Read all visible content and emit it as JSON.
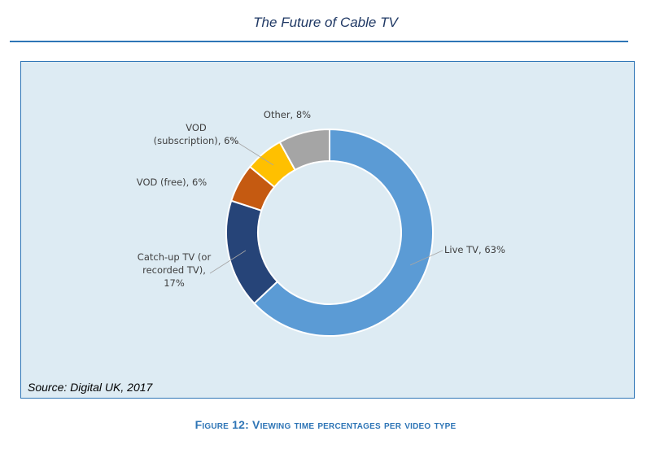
{
  "header": {
    "title": "The Future of Cable TV"
  },
  "source": "Source: Digital UK, 2017",
  "caption": "Figure 12: Viewing time percentages per video type",
  "colors": {
    "live_tv": "#5b9bd5",
    "catch_up": "#264478",
    "vod_free": "#c55a11",
    "vod_subscription": "#ffc000",
    "other": "#a5a5a5",
    "background": "#ddebf3",
    "border": "#2e75b6"
  },
  "chart_data": {
    "type": "pie",
    "subtype": "donut",
    "title": "Viewing time percentages per video type",
    "slices": [
      {
        "name": "Live TV",
        "value": 63,
        "label_lines": [
          "Live TV, 63%"
        ],
        "color": "#5b9bd5"
      },
      {
        "name": "Catch-up TV (or recorded TV)",
        "value": 17,
        "label_lines": [
          "Catch-up TV (or",
          "recorded TV),",
          "17%"
        ],
        "color": "#264478"
      },
      {
        "name": "VOD (free)",
        "value": 6,
        "label_lines": [
          "VOD (free), 6%"
        ],
        "color": "#c55a11"
      },
      {
        "name": "VOD (subscription)",
        "value": 6,
        "label_lines": [
          "VOD",
          "(subscription), 6%"
        ],
        "color": "#ffc000"
      },
      {
        "name": "Other",
        "value": 8,
        "label_lines": [
          "Other, 8%"
        ],
        "color": "#a5a5a5"
      }
    ]
  }
}
